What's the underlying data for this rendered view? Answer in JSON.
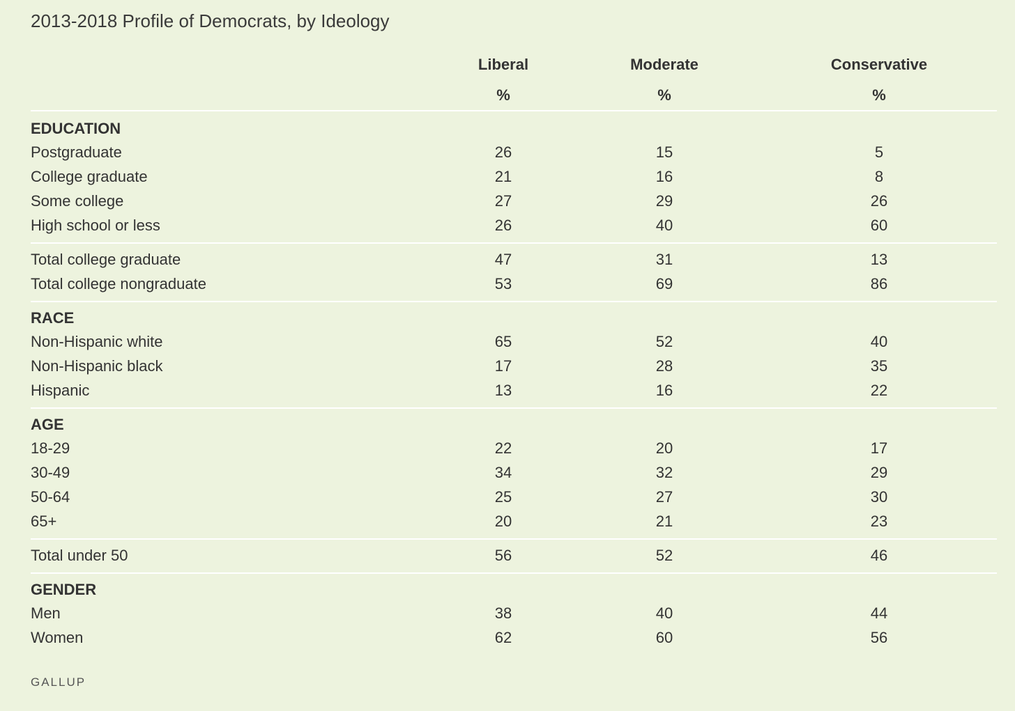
{
  "chart_data": {
    "type": "table",
    "title": "2013-2018 Profile of Democrats, by Ideology",
    "columns": [
      "Liberal",
      "Moderate",
      "Conservative"
    ],
    "units": [
      "%",
      "%",
      "%"
    ],
    "sections": [
      {
        "heading": "EDUCATION",
        "rows": [
          {
            "label": "Postgraduate",
            "values": [
              "26",
              "15",
              "5"
            ]
          },
          {
            "label": "College graduate",
            "values": [
              "21",
              "16",
              "8"
            ]
          },
          {
            "label": "Some college",
            "values": [
              "27",
              "29",
              "26"
            ]
          },
          {
            "label": "High school or less",
            "values": [
              "26",
              "40",
              "60"
            ]
          }
        ]
      },
      {
        "heading": "",
        "rows": [
          {
            "label": "Total college graduate",
            "values": [
              "47",
              "31",
              "13"
            ]
          },
          {
            "label": "Total college nongraduate",
            "values": [
              "53",
              "69",
              "86"
            ]
          }
        ]
      },
      {
        "heading": "RACE",
        "rows": [
          {
            "label": "Non-Hispanic white",
            "values": [
              "65",
              "52",
              "40"
            ]
          },
          {
            "label": "Non-Hispanic black",
            "values": [
              "17",
              "28",
              "35"
            ]
          },
          {
            "label": "Hispanic",
            "values": [
              "13",
              "16",
              "22"
            ]
          }
        ]
      },
      {
        "heading": "AGE",
        "rows": [
          {
            "label": "18-29",
            "values": [
              "22",
              "20",
              "17"
            ]
          },
          {
            "label": "30-49",
            "values": [
              "34",
              "32",
              "29"
            ]
          },
          {
            "label": "50-64",
            "values": [
              "25",
              "27",
              "30"
            ]
          },
          {
            "label": "65+",
            "values": [
              "20",
              "21",
              "23"
            ]
          }
        ]
      },
      {
        "heading": "",
        "rows": [
          {
            "label": "Total under 50",
            "values": [
              "56",
              "52",
              "46"
            ]
          }
        ]
      },
      {
        "heading": "GENDER",
        "rows": [
          {
            "label": "Men",
            "values": [
              "38",
              "40",
              "44"
            ]
          },
          {
            "label": "Women",
            "values": [
              "62",
              "60",
              "56"
            ]
          }
        ]
      }
    ],
    "source": "GALLUP"
  },
  "colors": {
    "background": "#edf3de",
    "text": "#333333",
    "rule": "#ffffff"
  }
}
